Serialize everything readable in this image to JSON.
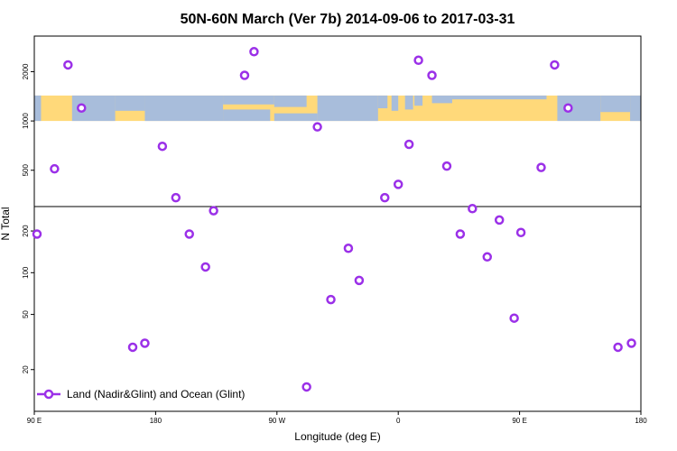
{
  "chart_data": {
    "type": "scatter",
    "title": "50N-60N March (Ver 7b)   2014-09-06 to 2017-03-31",
    "xlabel": "Longitude (deg E)",
    "ylabel": "N Total",
    "xlim": [
      90,
      540
    ],
    "x_ticks": [
      {
        "value": 90,
        "label": "90 E"
      },
      {
        "value": 180,
        "label": "180"
      },
      {
        "value": 270,
        "label": "90 W"
      },
      {
        "value": 360,
        "label": "0"
      },
      {
        "value": 450,
        "label": "90 E"
      },
      {
        "value": 540,
        "label": "180"
      }
    ],
    "y_scale": "log",
    "y_ranges": {
      "lower": [
        10,
        300
      ],
      "upper": [
        300,
        3300
      ]
    },
    "y_ticks_lower": [
      {
        "value": 20,
        "label": "20"
      },
      {
        "value": 50,
        "label": "50"
      },
      {
        "value": 100,
        "label": "100"
      },
      {
        "value": 200,
        "label": "200"
      }
    ],
    "y_ticks_upper": [
      {
        "value": 500,
        "label": "500"
      },
      {
        "value": 1000,
        "label": "1000"
      },
      {
        "value": 2000,
        "label": "2000"
      }
    ],
    "map_band": {
      "y_from": 1000,
      "y_to": 1430,
      "colors": {
        "land": "#FFD97A",
        "ocean": "#A8BDDB"
      }
    },
    "series": [
      {
        "name": "Land (Nadir&Glint) and Ocean (Glint)",
        "color": "#9B30E8",
        "points": [
          {
            "x": 92,
            "y": 190
          },
          {
            "x": 105,
            "y": 510
          },
          {
            "x": 115,
            "y": 2200
          },
          {
            "x": 125,
            "y": 1200
          },
          {
            "x": 163,
            "y": 29
          },
          {
            "x": 172,
            "y": 31
          },
          {
            "x": 185,
            "y": 700
          },
          {
            "x": 195,
            "y": 340
          },
          {
            "x": 205,
            "y": 190
          },
          {
            "x": 217,
            "y": 110
          },
          {
            "x": 223,
            "y": 280
          },
          {
            "x": 246,
            "y": 1900
          },
          {
            "x": 253,
            "y": 2650
          },
          {
            "x": 292,
            "y": 15
          },
          {
            "x": 300,
            "y": 920
          },
          {
            "x": 310,
            "y": 64
          },
          {
            "x": 323,
            "y": 150
          },
          {
            "x": 331,
            "y": 88
          },
          {
            "x": 350,
            "y": 340
          },
          {
            "x": 360,
            "y": 410
          },
          {
            "x": 368,
            "y": 720
          },
          {
            "x": 375,
            "y": 2350
          },
          {
            "x": 385,
            "y": 1900
          },
          {
            "x": 396,
            "y": 530
          },
          {
            "x": 406,
            "y": 190
          },
          {
            "x": 415,
            "y": 290
          },
          {
            "x": 426,
            "y": 130
          },
          {
            "x": 435,
            "y": 240
          },
          {
            "x": 446,
            "y": 47
          },
          {
            "x": 451,
            "y": 195
          },
          {
            "x": 466,
            "y": 520
          },
          {
            "x": 476,
            "y": 2200
          },
          {
            "x": 486,
            "y": 1200
          },
          {
            "x": 523,
            "y": 29
          },
          {
            "x": 533,
            "y": 31
          }
        ]
      }
    ],
    "legend": {
      "position": "bottom-left"
    }
  }
}
